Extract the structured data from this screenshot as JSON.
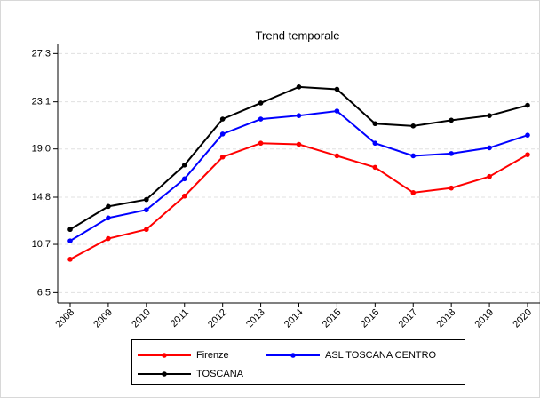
{
  "chart_data": {
    "type": "line",
    "title": "Trend temporale",
    "categories": [
      "2008",
      "2009",
      "2010",
      "2011",
      "2012",
      "2013",
      "2014",
      "2015",
      "2016",
      "2017",
      "2018",
      "2019",
      "2020"
    ],
    "series": [
      {
        "name": "Firenze",
        "color": "#ff0000",
        "values": [
          9.4,
          11.2,
          12.0,
          14.9,
          18.3,
          19.5,
          19.4,
          18.4,
          17.4,
          15.2,
          15.6,
          16.6,
          18.5
        ]
      },
      {
        "name": "ASL TOSCANA CENTRO",
        "color": "#0000ff",
        "values": [
          11.0,
          13.0,
          13.7,
          16.4,
          20.3,
          21.6,
          21.9,
          22.3,
          19.5,
          18.4,
          18.6,
          19.1,
          20.2
        ]
      },
      {
        "name": "TOSCANA",
        "color": "#000000",
        "values": [
          12.0,
          14.0,
          14.6,
          17.6,
          21.6,
          23.0,
          24.4,
          24.2,
          21.2,
          21.0,
          21.5,
          21.9,
          22.8
        ]
      }
    ],
    "ylim": [
      5.6,
      28.1
    ],
    "yticks": [
      {
        "value": 6.5,
        "label": "6,5"
      },
      {
        "value": 10.7,
        "label": "10,7"
      },
      {
        "value": 14.8,
        "label": "14,8"
      },
      {
        "value": 19.0,
        "label": "19,0"
      },
      {
        "value": 23.1,
        "label": "23,1"
      },
      {
        "value": 27.3,
        "label": "27,3"
      }
    ],
    "grid": true,
    "legend": "bottom"
  }
}
